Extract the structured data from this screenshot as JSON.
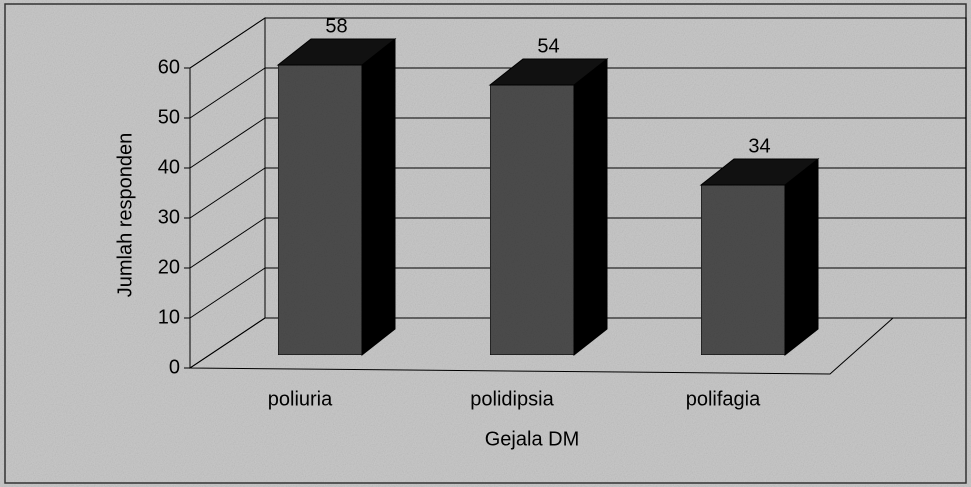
{
  "chart_data": {
    "type": "bar3d",
    "categories": [
      "poliuria",
      "polidipsia",
      "polifagia"
    ],
    "values": [
      58,
      54,
      34
    ],
    "color": "#4d4d4d",
    "xlabel": "Gejala DM",
    "ylabel": "Jumlah responden",
    "ylim": [
      0,
      60
    ],
    "yticks": [
      0,
      10,
      20,
      30,
      40,
      50,
      60
    ],
    "grid": true
  }
}
